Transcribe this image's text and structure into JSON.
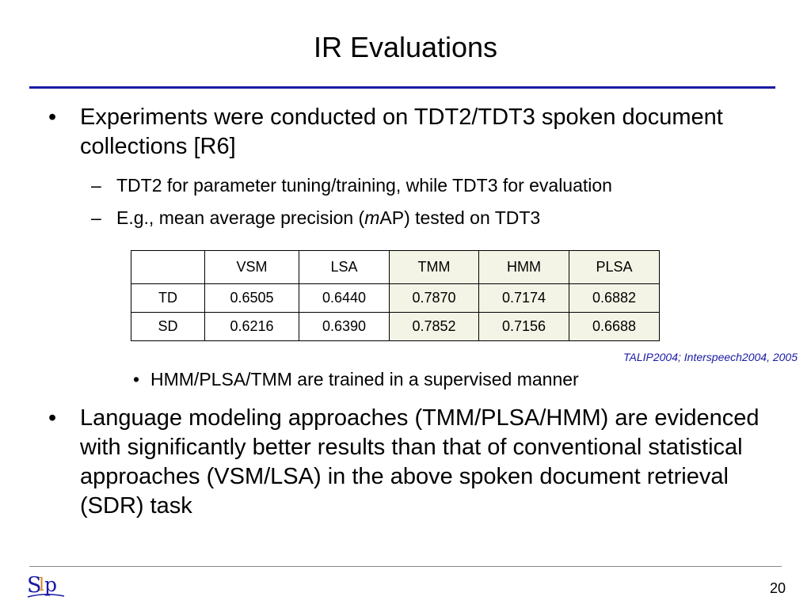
{
  "slide": {
    "title": "IR Evaluations",
    "bullets": [
      {
        "text": "Experiments were conducted on TDT2/TDT3 spoken document collections [R6]",
        "subs": [
          {
            "text": "TDT2 for parameter tuning/training, while TDT3 for evaluation"
          },
          {
            "pre": "E.g., mean average precision (",
            "italic": "m",
            "post": "AP) tested on TDT3"
          }
        ]
      },
      {
        "text": "Language modeling approaches (TMM/PLSA/HMM) are evidenced with significantly better results than that of conventional statistical approaches (VSM/LSA) in the above spoken document retrieval (SDR) task"
      }
    ],
    "table_note": "HMM/PLSA/TMM are trained in a supervised manner",
    "citation": "TALIP2004; Interspeech2004, 2005",
    "page_number": "20",
    "logo_icon": "slp-logo-icon",
    "colors": {
      "accent": "#1a1aa6",
      "highlight": "#f4f4e6"
    }
  },
  "chart_data": {
    "type": "table",
    "columns": [
      "",
      "VSM",
      "LSA",
      "TMM",
      "HMM",
      "PLSA"
    ],
    "rows": [
      {
        "label": "TD",
        "values": [
          "0.6505",
          "0.6440",
          "0.7870",
          "0.7174",
          "0.6882"
        ]
      },
      {
        "label": "SD",
        "values": [
          "0.6216",
          "0.6390",
          "0.7852",
          "0.7156",
          "0.6688"
        ]
      }
    ]
  }
}
